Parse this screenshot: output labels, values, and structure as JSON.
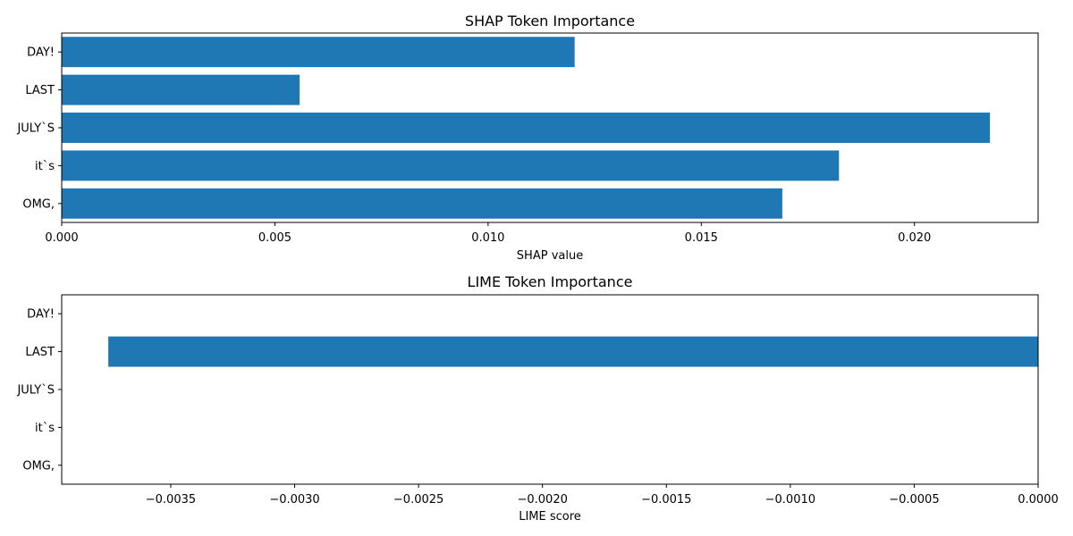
{
  "chart_data": [
    {
      "type": "bar",
      "orientation": "horizontal",
      "title": "SHAP Token Importance",
      "xlabel": "SHAP value",
      "ylabel": "",
      "categories": [
        "OMG,",
        "it`s",
        "JULY`S",
        "LAST",
        "DAY!"
      ],
      "values": [
        0.0169,
        0.01823,
        0.02177,
        0.00558,
        0.01203
      ],
      "xlim": [
        0.0,
        0.0229
      ],
      "xticks": [
        0.0,
        0.005,
        0.01,
        0.015,
        0.02
      ],
      "xtick_labels": [
        "0.000",
        "0.005",
        "0.010",
        "0.015",
        "0.020"
      ],
      "grid": false,
      "bar_color": "#1f77b4"
    },
    {
      "type": "bar",
      "orientation": "horizontal",
      "title": "LIME Token Importance",
      "xlabel": "LIME score",
      "ylabel": "",
      "categories": [
        "OMG,",
        "it`s",
        "JULY`S",
        "LAST",
        "DAY!"
      ],
      "values": [
        0,
        0,
        0,
        -0.003752,
        0
      ],
      "xlim": [
        -0.00394,
        0.0
      ],
      "xticks": [
        -0.0035,
        -0.003,
        -0.0025,
        -0.002,
        -0.0015,
        -0.001,
        -0.0005,
        0.0
      ],
      "xtick_labels": [
        "−0.0035",
        "−0.0030",
        "−0.0025",
        "−0.0020",
        "−0.0015",
        "−0.0010",
        "−0.0005",
        "0.0000"
      ],
      "grid": false,
      "bar_color": "#1f77b4"
    }
  ]
}
